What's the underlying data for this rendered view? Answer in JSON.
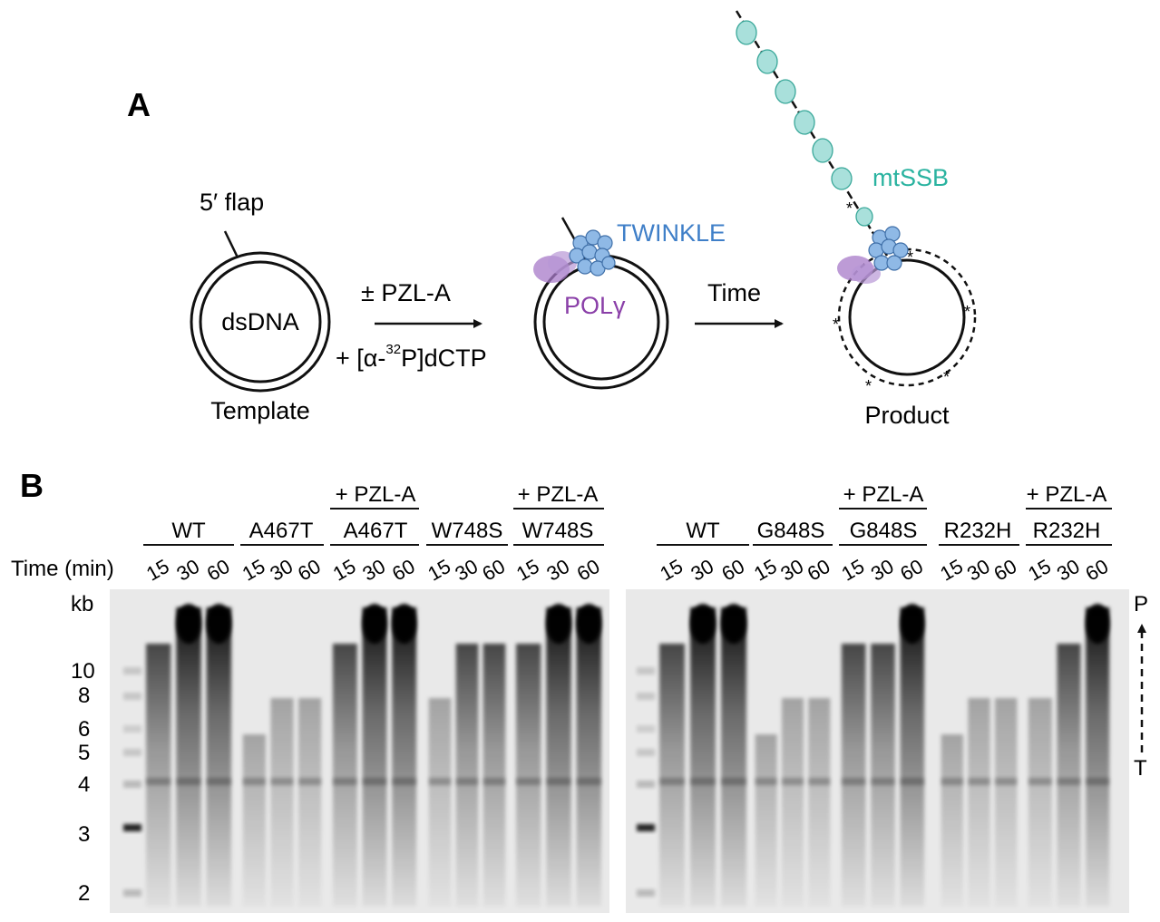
{
  "panel_a": {
    "label": "A",
    "template_flap": "5′ flap",
    "template_inner": "dsDNA",
    "template_caption": "Template",
    "arrow1_top": "± PZL-A",
    "arrow1_bottom_pre": "+ [α-",
    "arrow1_bottom_sup": "32",
    "arrow1_bottom_post": "P]dCTP",
    "twinkle": "TWINKLE",
    "polg": "POLγ",
    "arrow2_top": "Time",
    "mtssb": "mtSSB",
    "product_caption": "Product",
    "colors": {
      "twinkle": "#3f7fc8",
      "polg": "#8a3fa8",
      "mtssb": "#2ab3a0"
    }
  },
  "panel_b": {
    "label": "B",
    "time_label": "Time (min)",
    "kb_label": "kb",
    "markers": [
      "10",
      "8",
      "6",
      "5",
      "4",
      "3",
      "2"
    ],
    "right_top": "P",
    "right_bottom": "T",
    "left_gel": {
      "groups": [
        {
          "top": "",
          "name": "WT",
          "times": [
            "15",
            "30",
            "60"
          ]
        },
        {
          "top": "",
          "name": "A467T",
          "times": [
            "15",
            "30",
            "60"
          ]
        },
        {
          "top": "+ PZL-A",
          "name": "A467T",
          "times": [
            "15",
            "30",
            "60"
          ]
        },
        {
          "top": "",
          "name": "W748S",
          "times": [
            "15",
            "30",
            "60"
          ]
        },
        {
          "top": "+ PZL-A",
          "name": "W748S",
          "times": [
            "15",
            "30",
            "60"
          ]
        }
      ]
    },
    "right_gel": {
      "groups": [
        {
          "top": "",
          "name": "WT",
          "times": [
            "15",
            "30",
            "60"
          ]
        },
        {
          "top": "",
          "name": "G848S",
          "times": [
            "15",
            "30",
            "60"
          ]
        },
        {
          "top": "+ PZL-A",
          "name": "G848S",
          "times": [
            "15",
            "30",
            "60"
          ]
        },
        {
          "top": "",
          "name": "R232H",
          "times": [
            "15",
            "30",
            "60"
          ]
        },
        {
          "top": "+ PZL-A",
          "name": "R232H",
          "times": [
            "15",
            "30",
            "60"
          ]
        }
      ]
    }
  }
}
